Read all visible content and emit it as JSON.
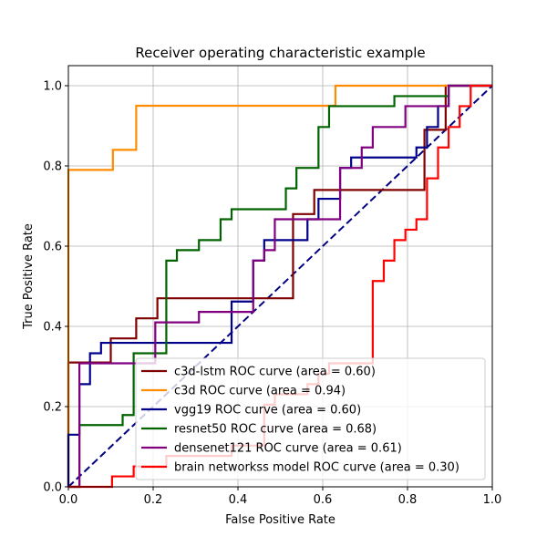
{
  "chart_data": {
    "type": "line",
    "title": "Receiver operating characteristic example",
    "xlabel": "False Positive Rate",
    "ylabel": "True Positive Rate",
    "xlim": [
      0.0,
      1.0
    ],
    "ylim": [
      0.0,
      1.05
    ],
    "xticks": [
      "0.0",
      "0.2",
      "0.4",
      "0.6",
      "0.8",
      "1.0"
    ],
    "yticks": [
      "0.0",
      "0.2",
      "0.4",
      "0.6",
      "0.8",
      "1.0"
    ],
    "grid": true,
    "legend_position": "lower-right",
    "diagonal": {
      "color": "#000080",
      "style": "dashed",
      "x": [
        0,
        1
      ],
      "y": [
        0,
        1
      ]
    },
    "series": [
      {
        "name": "c3d-lstm ROC curve (area = 0.60)",
        "color": "#800000",
        "x": [
          0,
          0,
          0.1,
          0.1,
          0.16,
          0.16,
          0.21,
          0.21,
          0.53,
          0.53,
          0.58,
          0.58,
          0.84,
          0.84,
          0.89,
          0.89,
          1.0
        ],
        "y": [
          0,
          0.31,
          0.31,
          0.37,
          0.37,
          0.42,
          0.42,
          0.47,
          0.47,
          0.68,
          0.68,
          0.74,
          0.74,
          0.89,
          0.89,
          1.0,
          1.0
        ]
      },
      {
        "name": "c3d ROC curve (area = 0.94)",
        "color": "#ff8c00",
        "x": [
          0,
          0,
          0.105,
          0.105,
          0.16,
          0.16,
          0.63,
          0.63,
          1.0
        ],
        "y": [
          0,
          0.79,
          0.79,
          0.84,
          0.84,
          0.95,
          0.95,
          1.0,
          1.0
        ]
      },
      {
        "name": "vgg19 ROC curve (area = 0.60)",
        "color": "#00008b",
        "x": [
          0,
          0,
          0.026,
          0.026,
          0.051,
          0.051,
          0.077,
          0.077,
          0.385,
          0.385,
          0.436,
          0.436,
          0.462,
          0.462,
          0.564,
          0.564,
          0.59,
          0.59,
          0.641,
          0.641,
          0.667,
          0.667,
          0.821,
          0.821,
          0.846,
          0.846,
          0.872,
          0.872,
          0.897,
          0.897,
          1.0
        ],
        "y": [
          0,
          0.13,
          0.13,
          0.256,
          0.256,
          0.333,
          0.333,
          0.359,
          0.359,
          0.462,
          0.462,
          0.564,
          0.564,
          0.615,
          0.615,
          0.667,
          0.667,
          0.718,
          0.718,
          0.795,
          0.795,
          0.821,
          0.821,
          0.846,
          0.846,
          0.897,
          0.897,
          0.949,
          0.949,
          1.0,
          1.0
        ]
      },
      {
        "name": "resnet50 ROC curve (area = 0.68)",
        "color": "#006400",
        "x": [
          0,
          0.026,
          0.026,
          0.128,
          0.128,
          0.154,
          0.154,
          0.231,
          0.231,
          0.256,
          0.256,
          0.308,
          0.308,
          0.359,
          0.359,
          0.385,
          0.385,
          0.513,
          0.513,
          0.538,
          0.538,
          0.59,
          0.59,
          0.615,
          0.615,
          0.769,
          0.769,
          0.897,
          0.897,
          1.0
        ],
        "y": [
          0,
          0,
          0.154,
          0.154,
          0.179,
          0.179,
          0.333,
          0.333,
          0.564,
          0.564,
          0.59,
          0.59,
          0.615,
          0.615,
          0.667,
          0.667,
          0.692,
          0.692,
          0.744,
          0.744,
          0.795,
          0.795,
          0.897,
          0.897,
          0.949,
          0.949,
          0.974,
          0.974,
          1.0,
          1.0
        ]
      },
      {
        "name": "densenet121 ROC curve (area = 0.61)",
        "color": "#800080",
        "x": [
          0,
          0.026,
          0.026,
          0.205,
          0.205,
          0.308,
          0.308,
          0.436,
          0.436,
          0.462,
          0.462,
          0.487,
          0.487,
          0.641,
          0.641,
          0.692,
          0.692,
          0.718,
          0.718,
          0.795,
          0.795,
          0.897,
          0.897,
          1.0
        ],
        "y": [
          0,
          0,
          0.308,
          0.308,
          0.41,
          0.41,
          0.436,
          0.436,
          0.564,
          0.564,
          0.59,
          0.59,
          0.667,
          0.667,
          0.795,
          0.795,
          0.846,
          0.846,
          0.897,
          0.897,
          0.949,
          0.949,
          1.0,
          1.0
        ]
      },
      {
        "name": "brain networkss model ROC curve (area = 0.30)",
        "color": "#ff0000",
        "x": [
          0,
          0.103,
          0.103,
          0.154,
          0.154,
          0.231,
          0.231,
          0.385,
          0.385,
          0.462,
          0.462,
          0.487,
          0.487,
          0.564,
          0.564,
          0.59,
          0.59,
          0.615,
          0.615,
          0.718,
          0.718,
          0.744,
          0.744,
          0.769,
          0.769,
          0.795,
          0.795,
          0.821,
          0.821,
          0.846,
          0.846,
          0.872,
          0.872,
          0.897,
          0.897,
          0.923,
          0.923,
          0.949,
          0.949,
          1.0
        ],
        "y": [
          0,
          0,
          0.026,
          0.026,
          0.051,
          0.051,
          0.077,
          0.077,
          0.103,
          0.103,
          0.205,
          0.205,
          0.231,
          0.231,
          0.256,
          0.256,
          0.282,
          0.282,
          0.308,
          0.308,
          0.513,
          0.513,
          0.564,
          0.564,
          0.615,
          0.615,
          0.641,
          0.641,
          0.667,
          0.667,
          0.769,
          0.769,
          0.846,
          0.846,
          0.897,
          0.897,
          0.949,
          0.949,
          1.0,
          1.0
        ]
      }
    ]
  }
}
